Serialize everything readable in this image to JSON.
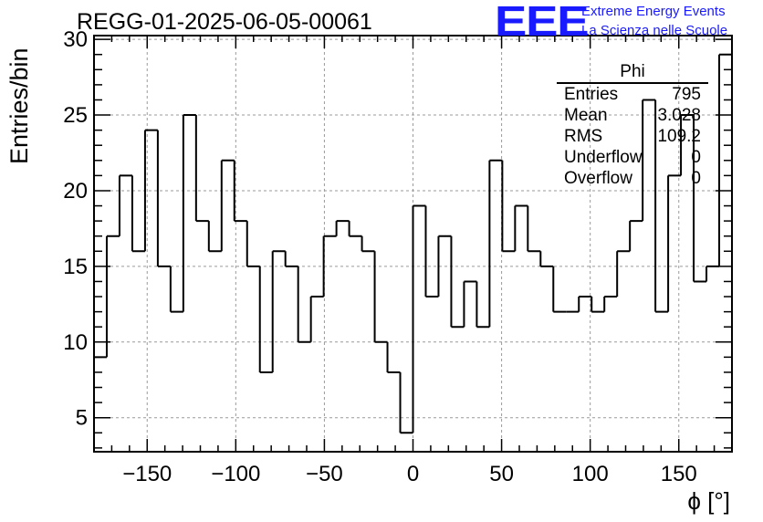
{
  "header": {
    "run_title": "REGG-01-2025-06-05-00061",
    "logo_text": "EEE",
    "logo_line1": "Extreme Energy Events",
    "logo_line2": "La Scienza nelle Scuole"
  },
  "stats_box": {
    "title": "Phi",
    "rows": [
      {
        "label": "Entries",
        "value": "795"
      },
      {
        "label": "Mean",
        "value": "3.028"
      },
      {
        "label": "RMS",
        "value": "109.2"
      },
      {
        "label": "Underflow",
        "value": "0"
      },
      {
        "label": "Overflow",
        "value": "0"
      }
    ]
  },
  "colors": {
    "logo": "#1a1aff",
    "line": "#000000",
    "grid": "#9a9a9a"
  },
  "chart_data": {
    "type": "histogram",
    "title": "REGG-01-2025-06-05-00061",
    "xlabel": "ϕ [°]",
    "ylabel": "Entries/bin",
    "xlim": [
      -180,
      180
    ],
    "ylim": [
      2.75,
      30.25
    ],
    "bin_edges_start": -180,
    "bin_width": 7.2,
    "values": [
      9,
      17,
      21,
      16,
      24,
      15,
      12,
      25,
      18,
      16,
      22,
      18,
      15,
      8,
      16,
      15,
      10,
      13,
      17,
      18,
      17,
      16,
      10,
      8,
      4,
      19,
      13,
      17,
      11,
      14,
      11,
      22,
      16,
      19,
      16,
      15,
      12,
      12,
      13,
      12,
      13,
      16,
      18,
      26,
      12,
      21,
      25,
      14,
      15,
      29
    ],
    "x_ticks": [
      -150,
      -100,
      -50,
      0,
      50,
      100,
      150
    ],
    "x_tick_labels": [
      "−150",
      "−100",
      "−50",
      "0",
      "50",
      "100",
      "150"
    ],
    "y_ticks": [
      5,
      10,
      15,
      20,
      25,
      30
    ],
    "y_tick_labels": [
      "5",
      "10",
      "15",
      "20",
      "25",
      "30"
    ],
    "grid": true,
    "legend": "stats box top-right"
  }
}
